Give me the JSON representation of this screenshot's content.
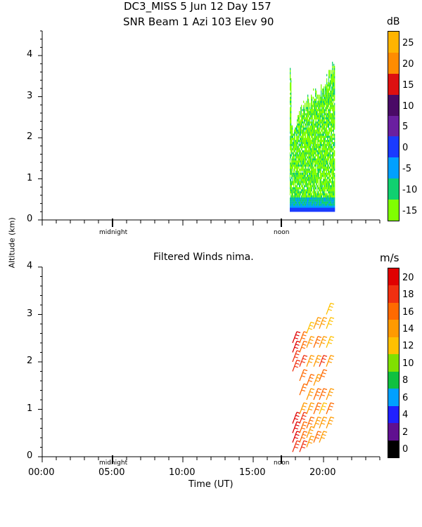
{
  "header": {
    "line1": "DC3_MISS   5 Jun 12 Day 157",
    "line2": "SNR Beam 1 Azi 103 Elev 90"
  },
  "y_axis_label": "Altitude (km)",
  "x_axis_label": "Time (UT)",
  "x_tick_labels": [
    "00:00",
    "05:00",
    "10:00",
    "15:00",
    "20:00"
  ],
  "marker_labels": {
    "midnight": "midnight",
    "noon": "noon"
  },
  "panels": [
    {
      "unit": "dB",
      "title": "",
      "y_ticks": [
        "0",
        "1",
        "2",
        "3",
        "4"
      ],
      "colorbar": {
        "labels": [
          "25",
          "20",
          "15",
          "10",
          "5",
          "0",
          "-5",
          "-10",
          "-15"
        ],
        "colors": [
          "#ffb400",
          "#ff8c00",
          "#dd1010",
          "#4a0a66",
          "#6a1fa0",
          "#1a3aff",
          "#00a0ff",
          "#10d070",
          "#80ff00"
        ]
      }
    },
    {
      "unit": "m/s",
      "title": "Filtered Winds nima.",
      "y_ticks": [
        "0",
        "1",
        "2",
        "3",
        "4"
      ],
      "colorbar": {
        "labels": [
          "20",
          "18",
          "16",
          "14",
          "12",
          "10",
          "8",
          "6",
          "4",
          "2",
          "0"
        ],
        "colors": [
          "#e00000",
          "#f03010",
          "#ff6a00",
          "#ff9a00",
          "#ffc000",
          "#80e000",
          "#10c040",
          "#00a0ff",
          "#2020ff",
          "#601090",
          "#000000"
        ]
      }
    }
  ],
  "chart_data": [
    {
      "type": "heatmap",
      "title": "SNR Beam 1 Azi 103 Elev 90",
      "xlabel": "Time (UT)",
      "ylabel": "Altitude (km)",
      "xlim": [
        0,
        24
      ],
      "ylim": [
        0,
        4.6
      ],
      "colorbar_range_dB": [
        -15,
        29
      ],
      "observation_window_hours": [
        17.6,
        20.8
      ],
      "echo_top_km": [
        {
          "x": 17.7,
          "y": 2.3
        },
        {
          "x": 18.0,
          "y": 2.6
        },
        {
          "x": 18.4,
          "y": 2.8
        },
        {
          "x": 18.8,
          "y": 3.0
        },
        {
          "x": 19.2,
          "y": 3.2
        },
        {
          "x": 19.6,
          "y": 3.3
        },
        {
          "x": 20.0,
          "y": 3.5
        },
        {
          "x": 20.4,
          "y": 3.8
        },
        {
          "x": 20.8,
          "y": 4.0
        }
      ]
    },
    {
      "type": "scatter",
      "title": "Filtered Winds nima.",
      "xlabel": "Time (UT)",
      "ylabel": "Altitude (km)",
      "xlim": [
        0,
        24
      ],
      "ylim": [
        0,
        4
      ],
      "colorbar_range_ms": [
        0,
        22
      ],
      "series": [
        {
          "x": [
            17.8,
            17.8,
            17.8,
            17.8,
            17.8,
            17.8,
            17.8,
            17.8
          ],
          "y": [
            0.1,
            0.3,
            0.5,
            0.7,
            1.8,
            2.0,
            2.2,
            2.4
          ],
          "speed": [
            19,
            20,
            21,
            20,
            19,
            18,
            20,
            21
          ]
        },
        {
          "x": [
            18.3,
            18.3,
            18.3,
            18.3,
            18.3,
            18.3,
            18.3,
            18.3,
            18.3,
            18.3
          ],
          "y": [
            0.1,
            0.3,
            0.5,
            0.7,
            0.9,
            1.3,
            1.6,
            1.9,
            2.2,
            2.4
          ],
          "speed": [
            18,
            16,
            17,
            18,
            15,
            16,
            17,
            18,
            17,
            16
          ]
        },
        {
          "x": [
            18.8,
            18.8,
            18.8,
            18.8,
            18.8,
            18.8,
            18.8,
            18.8,
            18.8
          ],
          "y": [
            0.2,
            0.4,
            0.6,
            0.9,
            1.2,
            1.5,
            1.9,
            2.3,
            2.6
          ],
          "speed": [
            15,
            14,
            16,
            15,
            14,
            17,
            15,
            14,
            13
          ]
        },
        {
          "x": [
            19.3,
            19.3,
            19.3,
            19.3,
            19.3,
            19.3,
            19.3,
            19.3
          ],
          "y": [
            0.3,
            0.6,
            0.9,
            1.2,
            1.5,
            1.9,
            2.3,
            2.7
          ],
          "speed": [
            16,
            15,
            17,
            16,
            15,
            14,
            16,
            15
          ]
        },
        {
          "x": [
            19.7,
            19.7,
            19.7,
            19.7,
            19.7,
            19.7,
            19.7,
            19.7
          ],
          "y": [
            0.3,
            0.6,
            0.9,
            1.2,
            1.6,
            1.9,
            2.3,
            2.7
          ],
          "speed": [
            14,
            15,
            13,
            16,
            17,
            18,
            15,
            14
          ]
        },
        {
          "x": [
            20.2,
            20.2,
            20.2,
            20.2,
            20.2,
            20.2,
            20.2
          ],
          "y": [
            0.6,
            0.9,
            1.2,
            1.9,
            2.3,
            2.7,
            3.0
          ],
          "speed": [
            15,
            16,
            15,
            14,
            13,
            13,
            12
          ]
        }
      ]
    }
  ]
}
